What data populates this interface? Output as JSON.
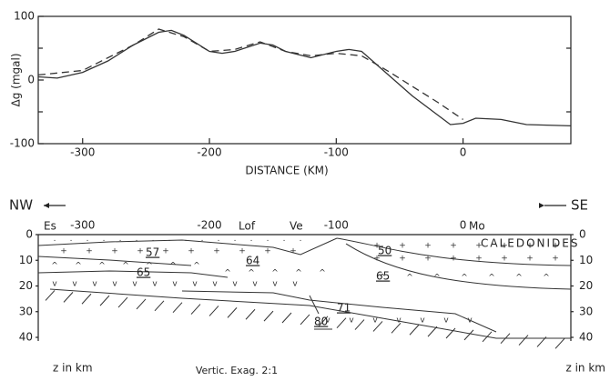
{
  "chart_data": {
    "type": "line",
    "xlabel": "DISTANCE (KM)",
    "ylabel": "Δg (mgal)",
    "xlim": [
      -335,
      85
    ],
    "xticks": [
      -300,
      -200,
      -100,
      0
    ],
    "ylim": [
      -100,
      100
    ],
    "yticks": [
      -100,
      0,
      100
    ],
    "yticks_minor": [
      -50,
      50
    ],
    "series": [
      {
        "color": "#333333",
        "dash": false,
        "x": [
          -335,
          -320,
          -300,
          -280,
          -260,
          -240,
          -230,
          -220,
          -200,
          -190,
          -180,
          -160,
          -150,
          -140,
          -120,
          -100,
          -90,
          -80,
          -60,
          -40,
          -20,
          -10,
          0,
          10,
          30,
          50,
          85
        ],
        "values": [
          5,
          3,
          12,
          30,
          55,
          75,
          78,
          70,
          45,
          42,
          45,
          58,
          55,
          45,
          35,
          45,
          48,
          45,
          10,
          -25,
          -55,
          -70,
          -68,
          -60,
          -62,
          -70,
          -72
        ]
      },
      {
        "color": "#333333",
        "dash": true,
        "x": [
          -335,
          -300,
          -260,
          -240,
          -220,
          -200,
          -180,
          -160,
          -140,
          -120,
          -100,
          -80,
          -60,
          -40,
          -20,
          0
        ],
        "values": [
          8,
          15,
          55,
          80,
          68,
          45,
          48,
          60,
          45,
          38,
          42,
          38,
          15,
          -10,
          -35,
          -62
        ]
      }
    ]
  },
  "section": {
    "left_direction": "NW",
    "right_direction": "SE",
    "distance_ticks": [
      -300,
      -200,
      -100,
      0
    ],
    "places": [
      "Es",
      "Lof",
      "Ve",
      "Mo"
    ],
    "region": "CALEDONIDES",
    "depth_ticks": [
      0,
      10,
      20,
      30,
      40
    ],
    "densities": [
      "57",
      "65",
      "64",
      "50",
      "65",
      "71",
      "80"
    ],
    "depth_unit": "z in km",
    "exaggeration": "Vertic. Exag. 2:1"
  }
}
